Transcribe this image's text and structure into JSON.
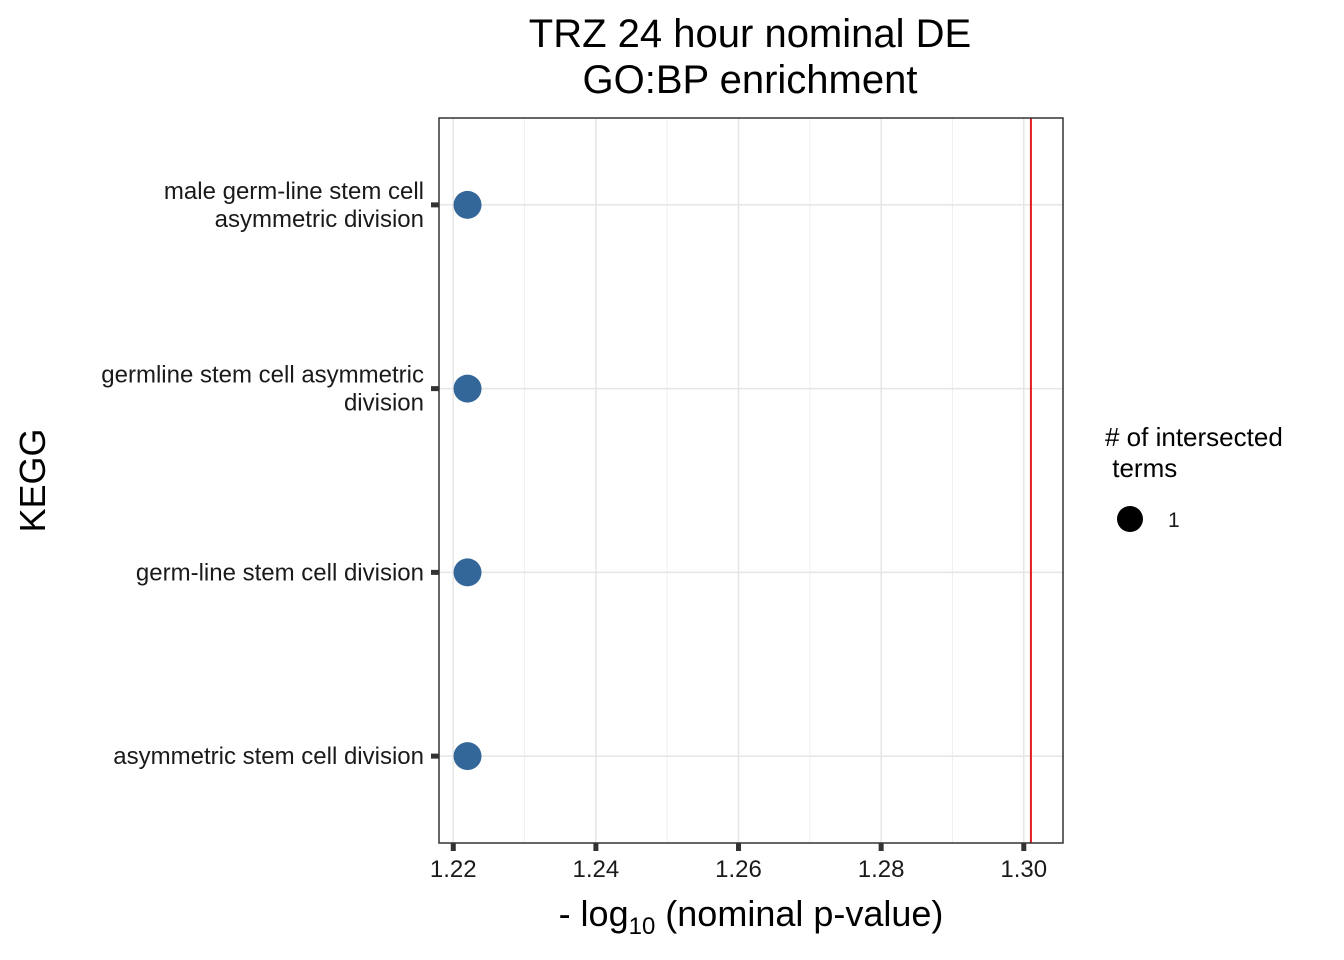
{
  "chart_data": {
    "type": "scatter",
    "title": [
      "TRZ 24 hour nominal DE",
      "GO:BP enrichment"
    ],
    "xlabel": {
      "prefix": "- log",
      "subscript": "10",
      "suffix": " (nominal p-value)"
    },
    "ylabel": "KEGG",
    "xlim": [
      1.218,
      1.3055
    ],
    "xticks": [
      1.22,
      1.24,
      1.26,
      1.28,
      1.3
    ],
    "xtick_labels": [
      "1.22",
      "1.24",
      "1.26",
      "1.28",
      "1.30"
    ],
    "categories": [
      [
        "male germ-line stem cell",
        "asymmetric division"
      ],
      [
        "germline stem cell asymmetric",
        "division"
      ],
      [
        "germ-line stem cell division"
      ],
      [
        "asymmetric stem cell division"
      ]
    ],
    "points": [
      {
        "x": 1.222,
        "category_index": 0,
        "size": 1
      },
      {
        "x": 1.222,
        "category_index": 1,
        "size": 1
      },
      {
        "x": 1.222,
        "category_index": 2,
        "size": 1
      },
      {
        "x": 1.222,
        "category_index": 3,
        "size": 1
      }
    ],
    "reference_line": {
      "x": 1.301,
      "color": "#e41a1c"
    },
    "point_color": "#336699",
    "grid": true,
    "legend": {
      "title": [
        "# of intersected",
        " terms"
      ],
      "entries": [
        {
          "label": "1",
          "size": 1
        }
      ],
      "placement": "right"
    }
  }
}
